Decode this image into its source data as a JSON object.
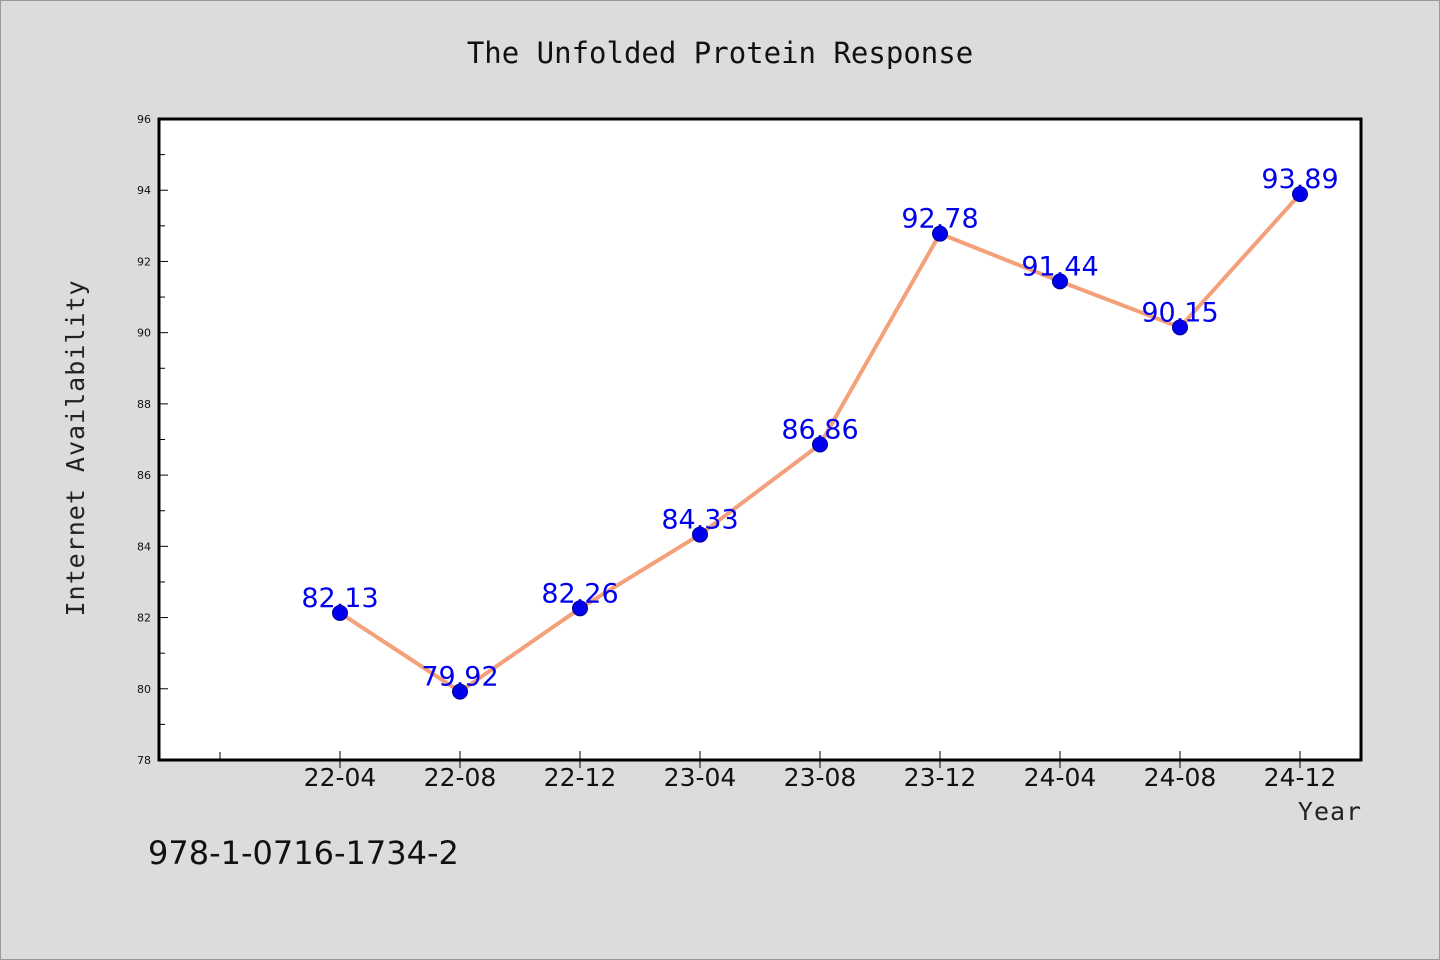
{
  "chart_data": {
    "type": "line",
    "title": "The Unfolded Protein Response",
    "xlabel": "Year",
    "ylabel": "Internet Availability",
    "categories": [
      "22-04",
      "22-08",
      "22-12",
      "23-04",
      "23-08",
      "23-12",
      "24-04",
      "24-08",
      "24-12"
    ],
    "values": [
      82.13,
      79.92,
      82.26,
      84.33,
      86.86,
      92.78,
      91.44,
      90.15,
      93.89
    ],
    "value_labels": [
      "82.13",
      "79.92",
      "82.26",
      "84.33",
      "86.86",
      "92.78",
      "91.44",
      "90.15",
      "93.89"
    ],
    "ylim": [
      78,
      96
    ],
    "yticks": [
      "78",
      "80",
      "82",
      "84",
      "86",
      "88",
      "90",
      "92",
      "94",
      "96"
    ],
    "grid": false,
    "line_color": "#f4a07a",
    "marker_color": "#0000ee"
  },
  "footer": {
    "isbn": "978-1-0716-1734-2"
  }
}
